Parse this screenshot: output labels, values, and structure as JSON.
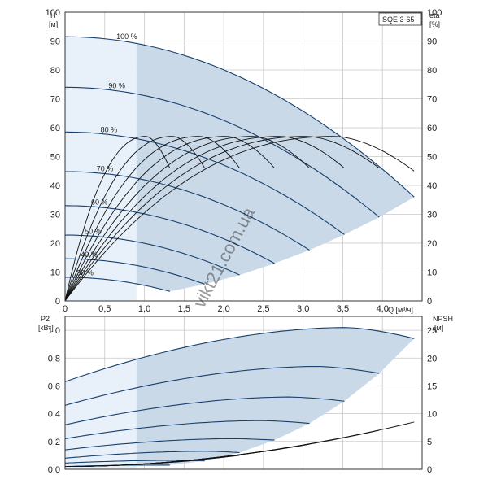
{
  "model_label": "SQE 3-65",
  "watermark": "vikt21.com.ua",
  "colors": {
    "region_light": "#e8f1fa",
    "region_main": "#c9d9e8",
    "curve": "#17406e",
    "efficiency": "#111111",
    "grid": "#c8c8c8",
    "frame": "#333333"
  },
  "chart_data": [
    {
      "type": "line",
      "name": "head",
      "y_left_title": "H",
      "y_left_unit": "[м]",
      "y_right_title": "eta",
      "y_right_unit": "[%]",
      "x_label": "Q [м³/ч]",
      "xlim": [
        0,
        4.5
      ],
      "ylim": [
        0,
        100
      ],
      "x_ticks": [
        "0",
        "0,5",
        "1,0",
        "1,5",
        "2,0",
        "2,5",
        "3,0",
        "3,5",
        "4,0"
      ],
      "x_tick_values": [
        0,
        0.5,
        1.0,
        1.5,
        2.0,
        2.5,
        3.0,
        3.5,
        4.0
      ],
      "y_ticks": [
        0,
        10,
        20,
        30,
        40,
        50,
        60,
        70,
        80,
        90,
        100
      ],
      "grid": true,
      "speeds": [
        {
          "label": "100 %",
          "shutoff": 91.5,
          "qmax": 4.4,
          "hend": 36
        },
        {
          "label": "90 %",
          "shutoff": 74.0,
          "qmax": 3.96,
          "hend": 29
        },
        {
          "label": "80 %",
          "shutoff": 58.5,
          "qmax": 3.52,
          "hend": 23
        },
        {
          "label": "70 %",
          "shutoff": 44.8,
          "qmax": 3.08,
          "hend": 17.6
        },
        {
          "label": "60 %",
          "shutoff": 33.0,
          "qmax": 2.64,
          "hend": 13
        },
        {
          "label": "50 %",
          "shutoff": 22.8,
          "qmax": 2.2,
          "hend": 9
        },
        {
          "label": "40 %",
          "shutoff": 14.6,
          "qmax": 1.76,
          "hend": 5.8
        },
        {
          "label": "30 %",
          "shutoff": 8.2,
          "qmax": 1.32,
          "hend": 3.3
        }
      ],
      "light_region_qmax": 0.9,
      "efficiency_peak": 57,
      "efficiency_curves": [
        {
          "qmax": 4.4,
          "peak_q": 3.4,
          "end": 45
        },
        {
          "qmax": 3.96,
          "peak_q": 3.05,
          "end": 46
        },
        {
          "qmax": 3.52,
          "peak_q": 2.72,
          "end": 46
        },
        {
          "qmax": 3.08,
          "peak_q": 2.38,
          "end": 46
        },
        {
          "qmax": 2.64,
          "peak_q": 2.04,
          "end": 46
        },
        {
          "qmax": 2.2,
          "peak_q": 1.7,
          "end": 46
        },
        {
          "qmax": 1.76,
          "peak_q": 1.36,
          "end": 46
        },
        {
          "qmax": 1.32,
          "peak_q": 1.02,
          "end": 46
        }
      ]
    },
    {
      "type": "line",
      "name": "power",
      "y_left_title": "P2",
      "y_left_unit": "[кВт]",
      "y_right_title": "NPSH",
      "y_right_unit": "[м]",
      "xlim": [
        0,
        4.5
      ],
      "ylim": [
        0,
        1.1
      ],
      "y_ticks": [
        "0.0",
        "0.2",
        "0.4",
        "0.6",
        "0.8",
        "1.0"
      ],
      "y_tick_values": [
        0,
        0.2,
        0.4,
        0.6,
        0.8,
        1.0
      ],
      "y_right_ticks": [
        0,
        5,
        10,
        15,
        20,
        25
      ],
      "y_right_tick_values_in_power_units": [
        0,
        0.2,
        0.4,
        0.6,
        0.8,
        1.0
      ],
      "grid": true,
      "power_curves": [
        {
          "p0": 0.63,
          "qmax": 4.4,
          "pmax": 1.02,
          "pend": 0.94
        },
        {
          "p0": 0.46,
          "qmax": 3.96,
          "pmax": 0.74,
          "pend": 0.69
        },
        {
          "p0": 0.32,
          "qmax": 3.52,
          "pmax": 0.52,
          "pend": 0.49
        },
        {
          "p0": 0.22,
          "qmax": 3.08,
          "pmax": 0.35,
          "pend": 0.33
        },
        {
          "p0": 0.14,
          "qmax": 2.64,
          "pmax": 0.22,
          "pend": 0.21
        },
        {
          "p0": 0.08,
          "qmax": 2.2,
          "pmax": 0.13,
          "pend": 0.12
        },
        {
          "p0": 0.045,
          "qmax": 1.76,
          "pmax": 0.065,
          "pend": 0.06
        },
        {
          "p0": 0.02,
          "qmax": 1.32,
          "pmax": 0.03,
          "pend": 0.03
        }
      ],
      "npsh_curves": [
        {
          "qmax": 4.4,
          "end": 0.34
        },
        {
          "qmax": 3.96,
          "end": 0.28
        },
        {
          "qmax": 3.52,
          "end": 0.23
        },
        {
          "qmax": 3.08,
          "end": 0.18
        },
        {
          "qmax": 2.64,
          "end": 0.14
        },
        {
          "qmax": 2.2,
          "end": 0.1
        },
        {
          "qmax": 1.76,
          "end": 0.07
        },
        {
          "qmax": 1.32,
          "end": 0.05
        }
      ]
    }
  ]
}
